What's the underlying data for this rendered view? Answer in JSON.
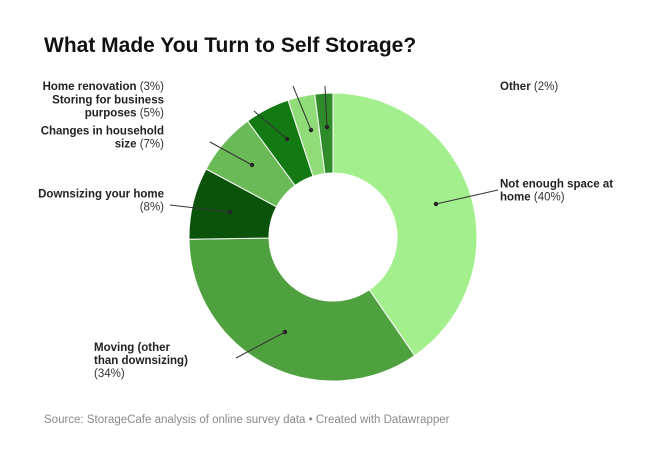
{
  "chart_data": {
    "type": "pie",
    "title": "What Made You Turn to Self Storage?",
    "source": "Source: StorageCafe analysis of online survey data • Created with Datawrapper",
    "donut": true,
    "slices": [
      {
        "name": "Not enough space at home",
        "value": 40,
        "color": "#a3ef8d",
        "label_lines": [
          {
            "b": "Not enough space at"
          },
          {
            "b": "home",
            "n": " (40%)"
          }
        ]
      },
      {
        "name": "Moving (other than downsizing)",
        "value": 34,
        "color": "#4fa03e",
        "label_lines": [
          {
            "b": "Moving (other"
          },
          {
            "b": "than downsizing)"
          },
          {
            "n": "(34%)"
          }
        ]
      },
      {
        "name": "Downsizing your home",
        "value": 8,
        "color": "#0b520b",
        "label_lines": [
          {
            "b": "Downsizing your home"
          },
          {
            "n": "(8%)"
          }
        ]
      },
      {
        "name": "Changes in household size",
        "value": 7,
        "color": "#6abb58",
        "label_lines": [
          {
            "b": "Changes in household"
          },
          {
            "b": "size",
            "n": " (7%)"
          }
        ]
      },
      {
        "name": "Storing for business purposes",
        "value": 5,
        "color": "#137a13",
        "label_lines": [
          {
            "b": "Storing for business"
          },
          {
            "b": "purposes",
            "n": " (5%)"
          }
        ]
      },
      {
        "name": "Home renovation",
        "value": 3,
        "color": "#8fdc78",
        "label_lines": [
          {
            "b": "Home renovation",
            "n": " (3%)"
          }
        ]
      },
      {
        "name": "Other",
        "value": 2,
        "color": "#2f8a2a",
        "label_lines": [
          {
            "b": "Other",
            "n": " (2%)"
          }
        ]
      }
    ]
  }
}
